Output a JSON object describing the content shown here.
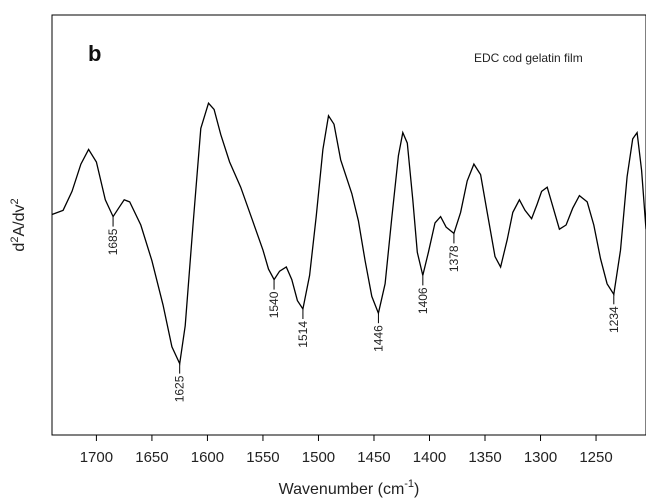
{
  "chart_data": {
    "type": "line",
    "panel_label": "b",
    "annotation": "EDC cod gelatin film",
    "xlabel_base": "Wavenumber (cm",
    "xlabel_sup": "-1",
    "xlabel_close": ")",
    "ylabel_base": "d",
    "ylabel_sup": "2",
    "ylabel_rest": "A/dv",
    "ylabel_sup2": "2",
    "x_reversed": true,
    "xlim": [
      1740,
      1205
    ],
    "ylim": [
      -1,
      1
    ],
    "yticks_shown": false,
    "grid": false,
    "xticks": [
      1700,
      1650,
      1600,
      1550,
      1500,
      1450,
      1400,
      1350,
      1300,
      1250
    ],
    "series": [
      {
        "x": [
          1740,
          1730,
          1722,
          1714,
          1707,
          1700,
          1692,
          1685,
          1680,
          1675,
          1670,
          1660,
          1650,
          1640,
          1632,
          1625,
          1620,
          1613,
          1606,
          1599,
          1594,
          1588,
          1580,
          1570,
          1560,
          1550,
          1545,
          1540,
          1535,
          1529,
          1524,
          1519,
          1514,
          1508,
          1502,
          1496,
          1491,
          1486,
          1480,
          1470,
          1464,
          1458,
          1452,
          1446,
          1440,
          1434,
          1428,
          1424,
          1420,
          1415,
          1411,
          1406,
          1401,
          1395,
          1390,
          1385,
          1378,
          1372,
          1366,
          1360,
          1354,
          1348,
          1341,
          1336,
          1330,
          1325,
          1319,
          1314,
          1308,
          1303,
          1299,
          1294,
          1289,
          1283,
          1277,
          1271,
          1265,
          1258,
          1252,
          1246,
          1240,
          1234,
          1228,
          1222,
          1217,
          1213,
          1209,
          1205
        ],
        "y": [
          0.05,
          0.07,
          0.16,
          0.29,
          0.36,
          0.3,
          0.12,
          0.04,
          0.08,
          0.12,
          0.11,
          0.0,
          -0.17,
          -0.38,
          -0.58,
          -0.66,
          -0.48,
          0.0,
          0.46,
          0.58,
          0.55,
          0.43,
          0.3,
          0.18,
          0.03,
          -0.12,
          -0.21,
          -0.26,
          -0.22,
          -0.2,
          -0.26,
          -0.36,
          -0.4,
          -0.24,
          0.04,
          0.36,
          0.52,
          0.48,
          0.31,
          0.15,
          0.02,
          -0.17,
          -0.34,
          -0.42,
          -0.28,
          0.03,
          0.33,
          0.44,
          0.39,
          0.12,
          -0.13,
          -0.24,
          -0.13,
          0.01,
          0.04,
          -0.01,
          -0.04,
          0.06,
          0.21,
          0.29,
          0.24,
          0.06,
          -0.15,
          -0.2,
          -0.07,
          0.06,
          0.12,
          0.07,
          0.03,
          0.1,
          0.16,
          0.18,
          0.09,
          -0.02,
          0.0,
          0.08,
          0.14,
          0.11,
          0.0,
          -0.16,
          -0.28,
          -0.33,
          -0.12,
          0.23,
          0.41,
          0.44,
          0.26,
          -0.02
        ]
      }
    ],
    "peak_labels": [
      {
        "x": 1685,
        "y": 0.04,
        "label": "1685"
      },
      {
        "x": 1625,
        "y": -0.66,
        "label": "1625"
      },
      {
        "x": 1540,
        "y": -0.26,
        "label": "1540"
      },
      {
        "x": 1514,
        "y": -0.4,
        "label": "1514"
      },
      {
        "x": 1446,
        "y": -0.42,
        "label": "1446"
      },
      {
        "x": 1406,
        "y": -0.24,
        "label": "1406"
      },
      {
        "x": 1378,
        "y": -0.04,
        "label": "1378"
      },
      {
        "x": 1234,
        "y": -0.33,
        "label": "1234"
      }
    ]
  }
}
